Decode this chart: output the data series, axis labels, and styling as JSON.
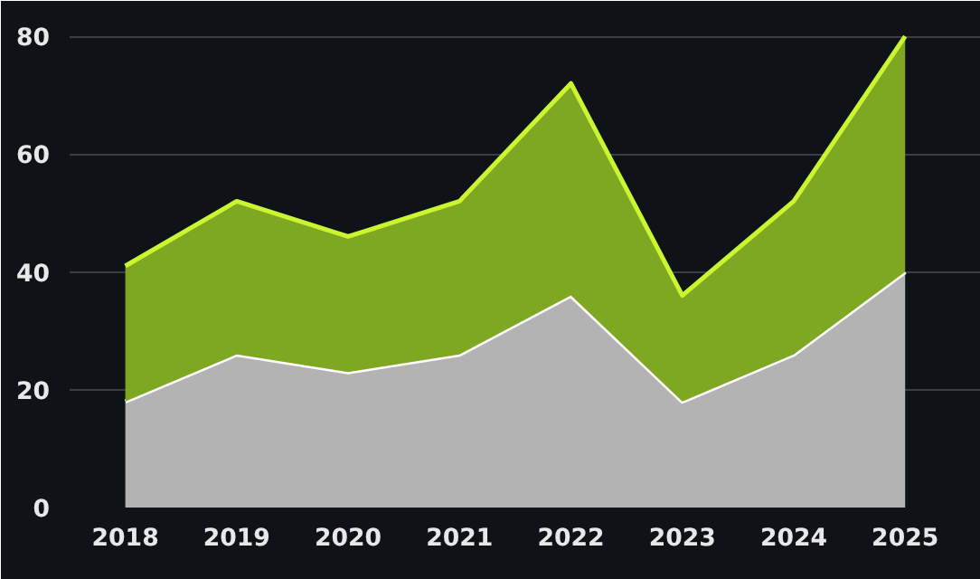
{
  "chart_data": {
    "type": "area",
    "stacked": true,
    "categories": [
      "2018",
      "2019",
      "2020",
      "2021",
      "2022",
      "2023",
      "2024",
      "2025"
    ],
    "series": [
      {
        "color": "#b3b3b4",
        "values": [
          18,
          26,
          23,
          26,
          36,
          18,
          26,
          40
        ]
      },
      {
        "color": "#7fa822",
        "values": [
          23,
          26,
          23,
          26,
          36,
          18,
          26,
          40
        ]
      }
    ],
    "ylim": [
      0,
      86
    ],
    "yticks": [
      0,
      20,
      40,
      60,
      80
    ],
    "grid": "y"
  }
}
